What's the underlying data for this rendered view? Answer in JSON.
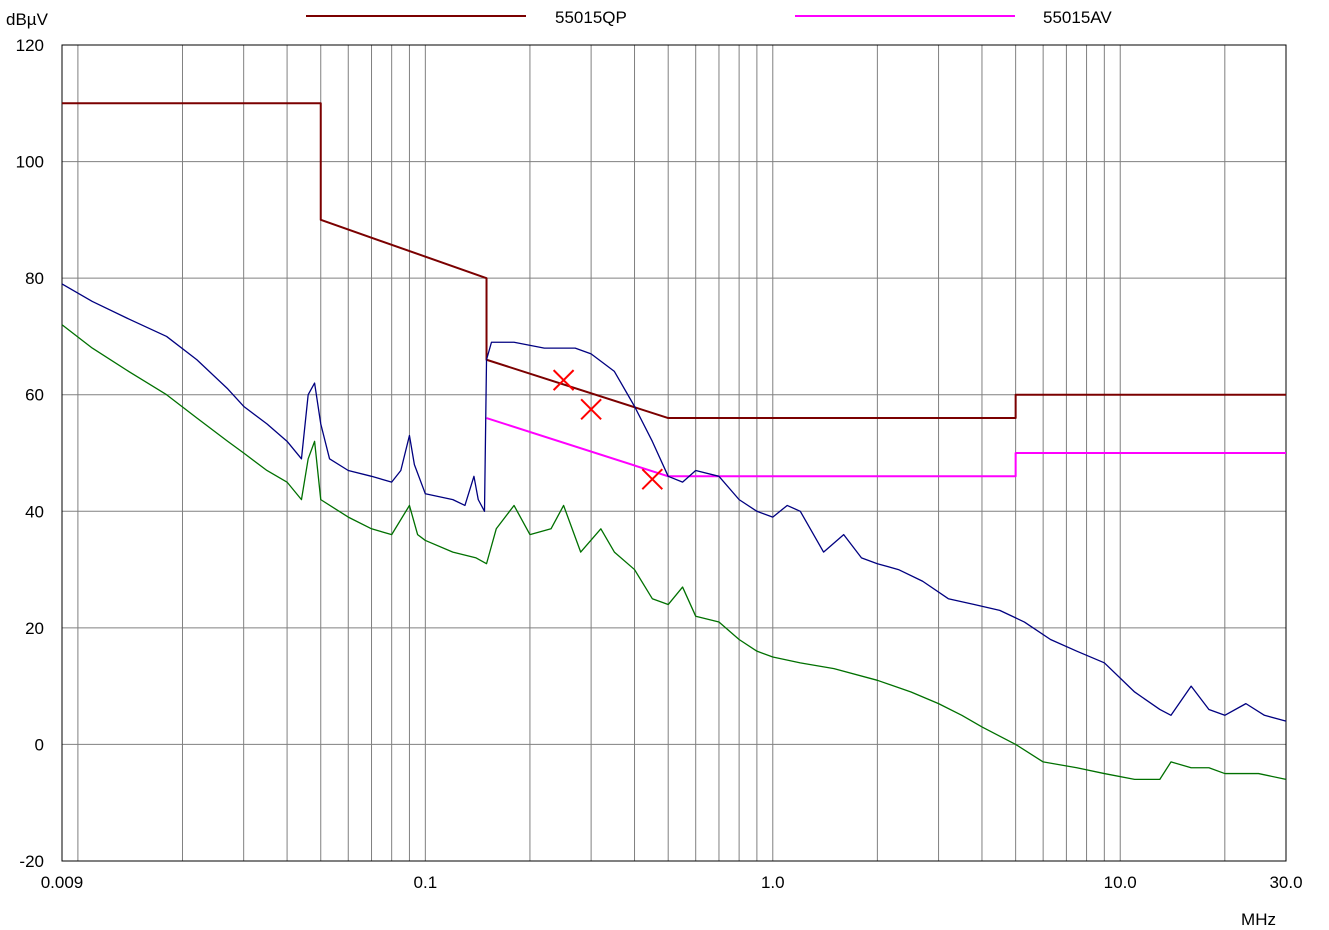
{
  "chart_data": {
    "type": "line",
    "title": "",
    "xlabel": "MHz",
    "ylabel": "dBµV",
    "x_scale": "log",
    "xlim": [
      0.009,
      30.0
    ],
    "ylim": [
      -20,
      120
    ],
    "x_tick_labels": [
      {
        "value": 0.009,
        "label": "0.009"
      },
      {
        "value": 0.1,
        "label": "0.1"
      },
      {
        "value": 1.0,
        "label": "1.0"
      },
      {
        "value": 10.0,
        "label": "10.0"
      },
      {
        "value": 30.0,
        "label": "30.0"
      }
    ],
    "y_ticks": [
      -20,
      0,
      20,
      40,
      60,
      80,
      100,
      120
    ],
    "x_minor_gridlines": [
      0.01,
      0.02,
      0.03,
      0.04,
      0.05,
      0.06,
      0.07,
      0.08,
      0.09,
      0.2,
      0.3,
      0.4,
      0.5,
      0.6,
      0.7,
      0.8,
      0.9,
      2,
      3,
      4,
      5,
      6,
      7,
      8,
      9,
      20
    ],
    "grid": true,
    "legend_position": "top",
    "colors": {
      "qp_limit": "#7b0000",
      "av_limit": "#ff00ff",
      "peak_trace": "#000080",
      "average_trace": "#007000",
      "markers": "#ff0000",
      "grid": "#808080"
    },
    "series": [
      {
        "name": "55015QP",
        "role": "limit",
        "color": "#7b0000",
        "points": [
          [
            0.009,
            110
          ],
          [
            0.05,
            110
          ],
          [
            0.05,
            90
          ],
          [
            0.15,
            80
          ],
          [
            0.15,
            66
          ],
          [
            0.5,
            56
          ],
          [
            5,
            56
          ],
          [
            5,
            60
          ],
          [
            30,
            60
          ]
        ]
      },
      {
        "name": "55015AV",
        "role": "limit",
        "color": "#ff00ff",
        "points": [
          [
            0.15,
            56
          ],
          [
            0.5,
            46
          ],
          [
            5,
            46
          ],
          [
            5,
            50
          ],
          [
            30,
            50
          ]
        ]
      },
      {
        "role": "measurement-peak",
        "color": "#000080",
        "points": [
          [
            0.009,
            79
          ],
          [
            0.011,
            76
          ],
          [
            0.014,
            73
          ],
          [
            0.018,
            70
          ],
          [
            0.022,
            66
          ],
          [
            0.027,
            61
          ],
          [
            0.03,
            58
          ],
          [
            0.035,
            55
          ],
          [
            0.04,
            52
          ],
          [
            0.044,
            49
          ],
          [
            0.046,
            60
          ],
          [
            0.048,
            62
          ],
          [
            0.05,
            55
          ],
          [
            0.053,
            49
          ],
          [
            0.06,
            47
          ],
          [
            0.07,
            46
          ],
          [
            0.08,
            45
          ],
          [
            0.085,
            47
          ],
          [
            0.09,
            53
          ],
          [
            0.093,
            48
          ],
          [
            0.1,
            43
          ],
          [
            0.12,
            42
          ],
          [
            0.13,
            41
          ],
          [
            0.138,
            46
          ],
          [
            0.142,
            42
          ],
          [
            0.148,
            40
          ],
          [
            0.15,
            66
          ],
          [
            0.155,
            69
          ],
          [
            0.18,
            69
          ],
          [
            0.22,
            68
          ],
          [
            0.27,
            68
          ],
          [
            0.3,
            67
          ],
          [
            0.35,
            64
          ],
          [
            0.4,
            58
          ],
          [
            0.45,
            52
          ],
          [
            0.5,
            46
          ],
          [
            0.55,
            45
          ],
          [
            0.6,
            47
          ],
          [
            0.7,
            46
          ],
          [
            0.8,
            42
          ],
          [
            0.9,
            40
          ],
          [
            1.0,
            39
          ],
          [
            1.1,
            41
          ],
          [
            1.2,
            40
          ],
          [
            1.4,
            33
          ],
          [
            1.6,
            36
          ],
          [
            1.8,
            32
          ],
          [
            2.0,
            31
          ],
          [
            2.3,
            30
          ],
          [
            2.7,
            28
          ],
          [
            3.2,
            25
          ],
          [
            3.8,
            24
          ],
          [
            4.5,
            23
          ],
          [
            5.3,
            21
          ],
          [
            6.3,
            18
          ],
          [
            7.5,
            16
          ],
          [
            9.0,
            14
          ],
          [
            11,
            9
          ],
          [
            13,
            6
          ],
          [
            14,
            5
          ],
          [
            16,
            10
          ],
          [
            18,
            6
          ],
          [
            20,
            5
          ],
          [
            23,
            7
          ],
          [
            26,
            5
          ],
          [
            30,
            4
          ]
        ]
      },
      {
        "role": "measurement-average",
        "color": "#007000",
        "points": [
          [
            0.009,
            72
          ],
          [
            0.011,
            68
          ],
          [
            0.014,
            64
          ],
          [
            0.018,
            60
          ],
          [
            0.022,
            56
          ],
          [
            0.027,
            52
          ],
          [
            0.03,
            50
          ],
          [
            0.035,
            47
          ],
          [
            0.04,
            45
          ],
          [
            0.044,
            42
          ],
          [
            0.046,
            49
          ],
          [
            0.048,
            52
          ],
          [
            0.05,
            42
          ],
          [
            0.06,
            39
          ],
          [
            0.07,
            37
          ],
          [
            0.08,
            36
          ],
          [
            0.09,
            41
          ],
          [
            0.095,
            36
          ],
          [
            0.1,
            35
          ],
          [
            0.12,
            33
          ],
          [
            0.14,
            32
          ],
          [
            0.15,
            31
          ],
          [
            0.16,
            37
          ],
          [
            0.18,
            41
          ],
          [
            0.2,
            36
          ],
          [
            0.23,
            37
          ],
          [
            0.25,
            41
          ],
          [
            0.28,
            33
          ],
          [
            0.32,
            37
          ],
          [
            0.35,
            33
          ],
          [
            0.4,
            30
          ],
          [
            0.45,
            25
          ],
          [
            0.5,
            24
          ],
          [
            0.55,
            27
          ],
          [
            0.6,
            22
          ],
          [
            0.7,
            21
          ],
          [
            0.8,
            18
          ],
          [
            0.9,
            16
          ],
          [
            1.0,
            15
          ],
          [
            1.2,
            14
          ],
          [
            1.5,
            13
          ],
          [
            2.0,
            11
          ],
          [
            2.5,
            9
          ],
          [
            3.0,
            7
          ],
          [
            3.5,
            5
          ],
          [
            4.0,
            3
          ],
          [
            5.0,
            0
          ],
          [
            6.0,
            -3
          ],
          [
            7.5,
            -4
          ],
          [
            9.0,
            -5
          ],
          [
            11,
            -6
          ],
          [
            13,
            -6
          ],
          [
            14,
            -3
          ],
          [
            16,
            -4
          ],
          [
            18,
            -4
          ],
          [
            20,
            -5
          ],
          [
            25,
            -5
          ],
          [
            30,
            -6
          ]
        ]
      }
    ],
    "markers": [
      {
        "symbol": "x",
        "x": 0.25,
        "y": 62.5
      },
      {
        "symbol": "x",
        "x": 0.3,
        "y": 57.5
      },
      {
        "symbol": "x",
        "x": 0.45,
        "y": 45.5
      }
    ]
  }
}
